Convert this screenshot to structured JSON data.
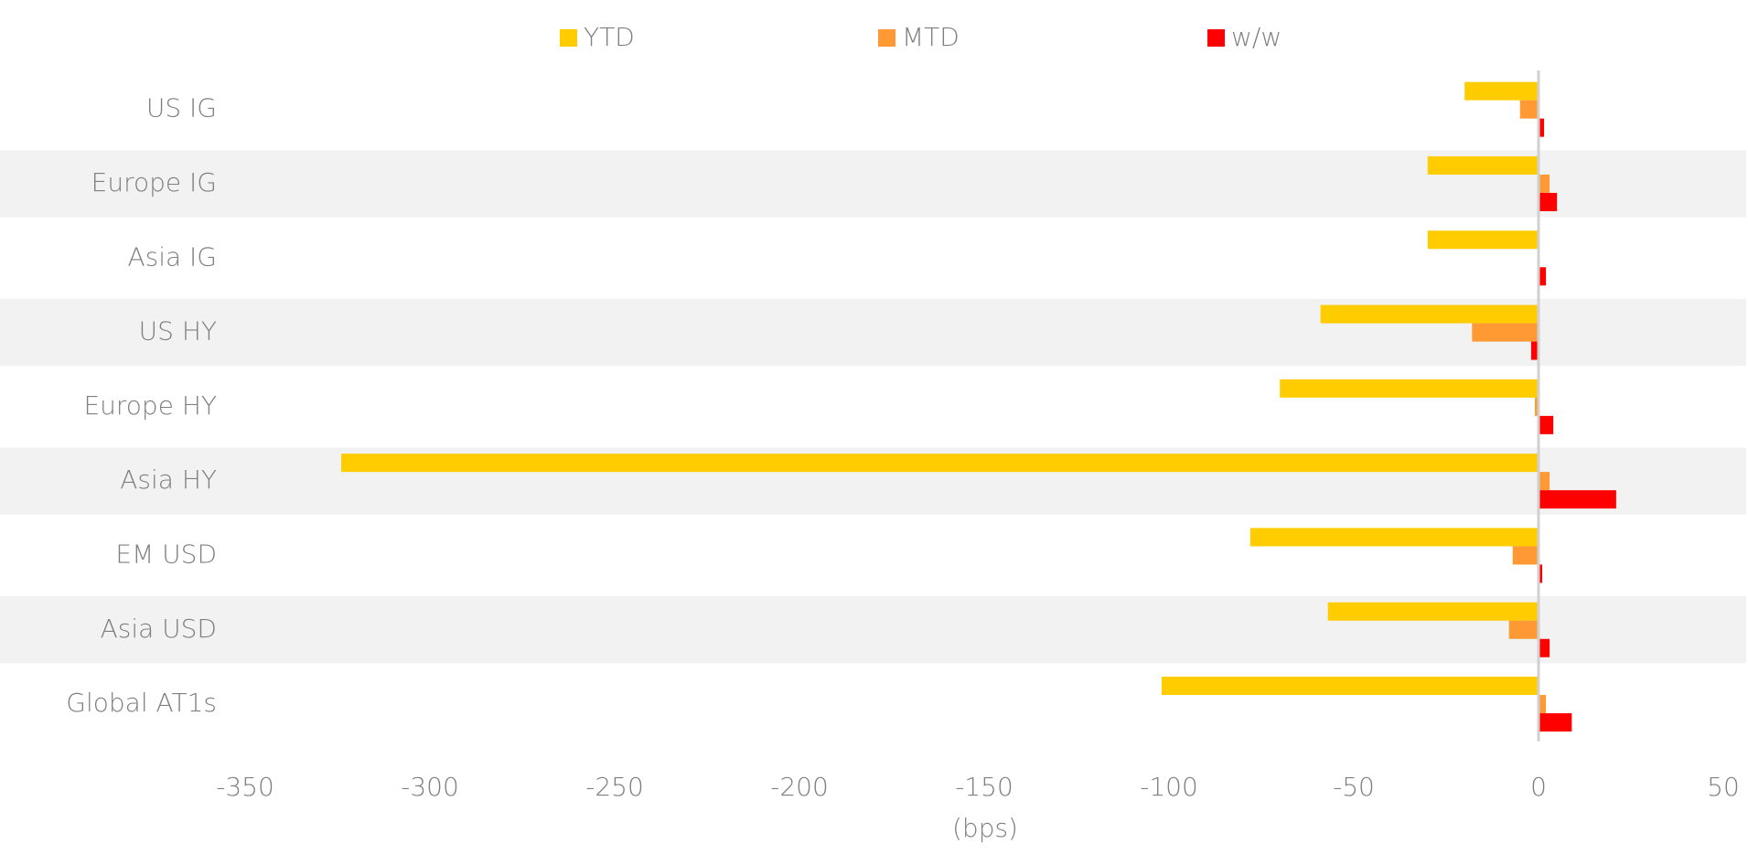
{
  "chart_data": {
    "type": "hbar",
    "x_label": "(bps)",
    "categories": [
      "US IG",
      "Europe IG",
      "Asia IG",
      "US HY",
      "Europe HY",
      "Asia HY",
      "EM USD",
      "Asia USD",
      "Global AT1s"
    ],
    "series": [
      {
        "name": "YTD",
        "color": "#ffcc00",
        "values": [
          -20,
          -30,
          -30,
          -59,
          -70,
          -324,
          -78,
          -57,
          -102
        ]
      },
      {
        "name": "MTD",
        "color": "#ff9933",
        "values": [
          -5,
          3,
          0,
          -18,
          -1,
          3,
          -7,
          -8,
          2
        ]
      },
      {
        "name": "w/w",
        "color": "#ff0000",
        "values": [
          1.5,
          5,
          2,
          -2,
          4,
          21,
          1,
          3,
          9
        ]
      }
    ],
    "xlim": [
      -350,
      50
    ],
    "xticks": [
      -350,
      -300,
      -250,
      -200,
      -150,
      -100,
      -50,
      0,
      50
    ],
    "legend": "top",
    "band_color": "#f2f2f2"
  }
}
